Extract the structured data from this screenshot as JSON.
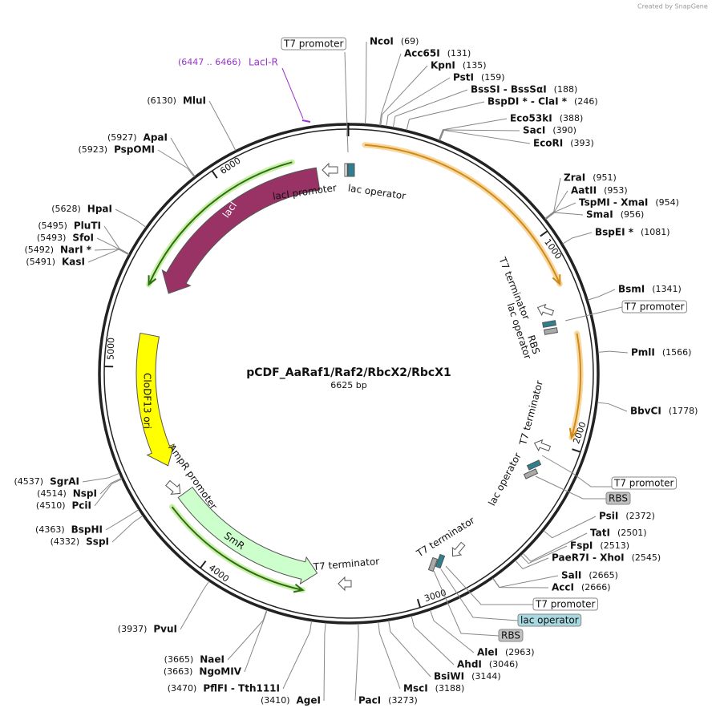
{
  "watermark": "Created by SnapGene",
  "plasmid": {
    "name": "pCDF_AaRaf1/Raf2/RbcX2/RbcX1",
    "length": "6625 bp"
  },
  "ring_ticks": [
    1000,
    2000,
    3000,
    4000,
    5000,
    6000
  ],
  "primer": {
    "range": "(6447 .. 6466)",
    "name": "LacI-R"
  },
  "enzymes": [
    {
      "name": "NcoI",
      "position": "(69)"
    },
    {
      "name": "Acc65I",
      "position": "(131)"
    },
    {
      "name": "KpnI",
      "position": "(135)"
    },
    {
      "name": "PstI",
      "position": "(159)"
    },
    {
      "name": "BssSI  -  BssSαI",
      "position": "(188)"
    },
    {
      "name": "BspDI *  -  ClaI *",
      "position": "(246)"
    },
    {
      "name": "Eco53kI",
      "position": "(388)"
    },
    {
      "name": "SacI",
      "position": "(390)"
    },
    {
      "name": "EcoRI",
      "position": "(393)"
    },
    {
      "name": "ZraI",
      "position": "(951)"
    },
    {
      "name": "AatII",
      "position": "(953)"
    },
    {
      "name": "TspMI  -  XmaI",
      "position": "(954)"
    },
    {
      "name": "SmaI",
      "position": "(956)"
    },
    {
      "name": "BspEI *",
      "position": "(1081)"
    },
    {
      "name": "BsmI",
      "position": "(1341)"
    },
    {
      "name": "PmlI",
      "position": "(1566)"
    },
    {
      "name": "BbvCI",
      "position": "(1778)"
    },
    {
      "name": "PsiI",
      "position": "(2372)"
    },
    {
      "name": "TatI",
      "position": "(2501)"
    },
    {
      "name": "FspI",
      "position": "(2513)"
    },
    {
      "name": "PaeR7I  -  XhoI",
      "position": "(2545)"
    },
    {
      "name": "SalI",
      "position": "(2665)"
    },
    {
      "name": "AccI",
      "position": "(2666)"
    },
    {
      "name": "AleI",
      "position": "(2963)"
    },
    {
      "name": "AhdI",
      "position": "(3046)"
    },
    {
      "name": "BsiWI",
      "position": "(3144)"
    },
    {
      "name": "MscI",
      "position": "(3188)"
    },
    {
      "name": "PacI",
      "position": "(3273)"
    },
    {
      "name": "AgeI",
      "position": "(3410)"
    },
    {
      "name": "PflFI  -  Tth111I",
      "position": "(3470)"
    },
    {
      "name": "NgoMIV",
      "position": "(3663)"
    },
    {
      "name": "NaeI",
      "position": "(3665)"
    },
    {
      "name": "PvuI",
      "position": "(3937)"
    },
    {
      "name": "SspI",
      "position": "(4332)"
    },
    {
      "name": "BspHI",
      "position": "(4363)"
    },
    {
      "name": "PciI",
      "position": "(4510)"
    },
    {
      "name": "NspI",
      "position": "(4514)"
    },
    {
      "name": "SgrAI",
      "position": "(4537)"
    },
    {
      "name": "KasI",
      "position": "(5491)"
    },
    {
      "name": "NarI *",
      "position": "(5492)"
    },
    {
      "name": "SfoI",
      "position": "(5493)"
    },
    {
      "name": "PluTI",
      "position": "(5495)"
    },
    {
      "name": "HpaI",
      "position": "(5628)"
    },
    {
      "name": "PspOMI",
      "position": "(5923)"
    },
    {
      "name": "ApaI",
      "position": "(5927)"
    },
    {
      "name": "MluI",
      "position": "(6130)"
    }
  ],
  "features": [
    {
      "label": "lacI"
    },
    {
      "label": "lacI promoter"
    },
    {
      "label": "lac operator"
    },
    {
      "label": "CloDF13 ori"
    },
    {
      "label": "AmpR promoter"
    },
    {
      "label": "SmR"
    },
    {
      "label": "T7 terminator"
    },
    {
      "label": "T7 terminator"
    },
    {
      "label": "lac operator"
    },
    {
      "label": "RBS"
    },
    {
      "label": "T7 terminator"
    },
    {
      "label": "lac operator"
    },
    {
      "label": "T7 terminator"
    }
  ],
  "boxed_labels": [
    {
      "label": "T7 promoter"
    },
    {
      "label": "T7 promoter"
    },
    {
      "label": "T7 promoter"
    },
    {
      "label": "RBS"
    },
    {
      "label": "T7 promoter"
    },
    {
      "label": "lac operator"
    },
    {
      "label": "RBS"
    }
  ]
}
